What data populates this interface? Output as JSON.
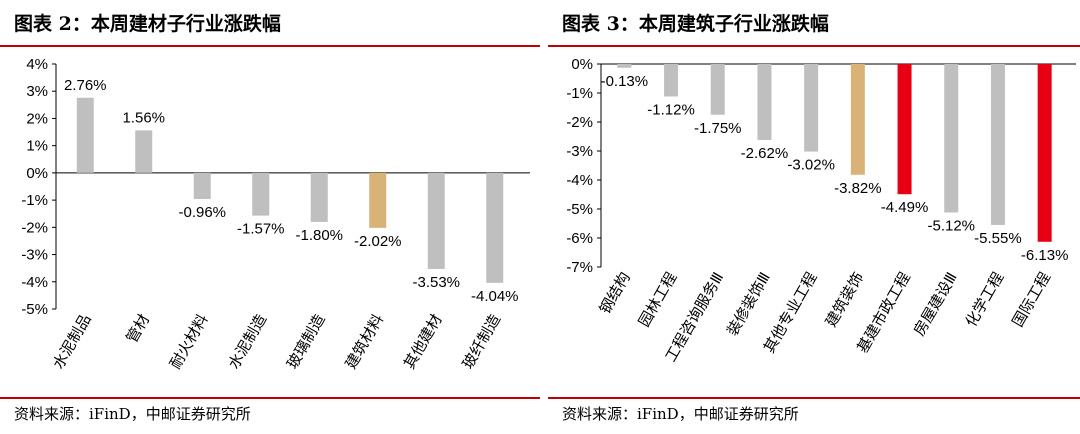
{
  "colors": {
    "bar_default": "#bfbfbf",
    "bar_highlight": "#d9b278",
    "bar_red": "#e60012",
    "rule": "#c00000"
  },
  "panels": {
    "left": {
      "title": "图表 2：本周建材子行业涨跌幅",
      "source": "资料来源：iFinD，中邮证券研究所"
    },
    "right": {
      "title": "图表 3：本周建筑子行业涨跌幅",
      "source": "资料来源：iFinD，中邮证券研究所"
    }
  },
  "chart_data": [
    {
      "type": "bar",
      "categories": [
        "水泥制品",
        "管材",
        "耐火材料",
        "水泥制造",
        "玻璃制造",
        "建筑材料",
        "其他建材",
        "玻纤制造"
      ],
      "values": [
        2.76,
        1.56,
        -0.96,
        -1.57,
        -1.8,
        -2.02,
        -3.53,
        -4.04
      ],
      "data_labels": [
        "2.76%",
        "1.56%",
        "-0.96%",
        "-1.57%",
        "-1.80%",
        "-2.02%",
        "-3.53%",
        "-4.04%"
      ],
      "bar_colors": [
        "#bfbfbf",
        "#bfbfbf",
        "#bfbfbf",
        "#bfbfbf",
        "#bfbfbf",
        "#d9b278",
        "#bfbfbf",
        "#bfbfbf"
      ],
      "y_ticks": [
        "4%",
        "3%",
        "2%",
        "1%",
        "0%",
        "-1%",
        "-2%",
        "-3%",
        "-4%",
        "-5%"
      ],
      "ylim": [
        -5,
        4
      ],
      "grid": false
    },
    {
      "type": "bar",
      "categories": [
        "钢结构",
        "园林工程",
        "工程咨询服务Ⅲ",
        "装修装饰Ⅲ",
        "其他专业工程",
        "建筑装饰",
        "基建市政工程",
        "房屋建设Ⅲ",
        "化学工程",
        "国际工程"
      ],
      "values": [
        -0.13,
        -1.12,
        -1.75,
        -2.62,
        -3.02,
        -3.82,
        -4.49,
        -5.12,
        -5.55,
        -6.13
      ],
      "data_labels": [
        "-0.13%",
        "-1.12%",
        "-1.75%",
        "-2.62%",
        "-3.02%",
        "-3.82%",
        "-4.49%",
        "-5.12%",
        "-5.55%",
        "-6.13%"
      ],
      "bar_colors": [
        "#bfbfbf",
        "#bfbfbf",
        "#bfbfbf",
        "#bfbfbf",
        "#bfbfbf",
        "#d9b278",
        "#e60012",
        "#bfbfbf",
        "#bfbfbf",
        "#e60012"
      ],
      "y_ticks": [
        "0%",
        "-1%",
        "-2%",
        "-3%",
        "-4%",
        "-5%",
        "-6%",
        "-7%"
      ],
      "ylim": [
        -7,
        0
      ],
      "grid": false
    }
  ]
}
